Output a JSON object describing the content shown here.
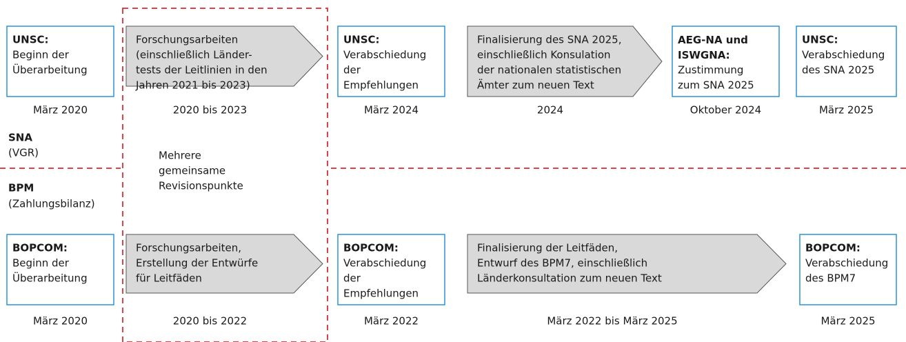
{
  "sna": {
    "label": "SNA",
    "sublabel": "(VGR)",
    "steps": [
      {
        "heading": "UNSC:",
        "lines": [
          "Beginn der",
          "Überarbeitung"
        ],
        "date": "März 2020"
      },
      {
        "lines": [
          "Forschungsarbeiten",
          "(einschließlich Länder-",
          "tests der Leitlinien in den",
          "Jahren 2021 bis 2023)"
        ],
        "date": "2020 bis 2023"
      },
      {
        "heading": "UNSC:",
        "lines": [
          "Verabschiedung",
          "der",
          "Empfehlungen"
        ],
        "date": "März 2024"
      },
      {
        "lines": [
          "Finalisierung des SNA 2025,",
          "einschließlich Konsulation",
          "der nationalen statistischen",
          "Ämter zum neuen Text"
        ],
        "date": "2024"
      },
      {
        "heading": "AEG-NA und ISWGNA:",
        "lines": [
          "Zustimmung",
          "zum SNA 2025"
        ],
        "date": "Oktober 2024"
      },
      {
        "heading": "UNSC:",
        "lines": [
          "Verabschiedung",
          "des SNA 2025"
        ],
        "date": "März 2025"
      }
    ]
  },
  "bpm": {
    "label": "BPM",
    "sublabel": "(Zahlungsbilanz)",
    "steps": [
      {
        "heading": "BOPCOM:",
        "lines": [
          "Beginn der",
          "Überarbeitung"
        ],
        "date": "März 2020"
      },
      {
        "lines": [
          "Forschungsarbeiten,",
          "Erstellung der Entwürfe",
          "für Leitfäden"
        ],
        "date": "2020 bis 2022"
      },
      {
        "heading": "BOPCOM:",
        "lines": [
          "Verabschiedung",
          "der",
          "Empfehlungen"
        ],
        "date": "März 2022"
      },
      {
        "lines": [
          "Finalisierung der Leitfäden,",
          "Entwurf des BPM7, einschließlich",
          "Länderkonsultation zum neuen Text"
        ],
        "date": "März 2022 bis März 2025"
      },
      {
        "heading": "BOPCOM:",
        "lines": [
          "Verabschiedung",
          "des BPM7"
        ],
        "date": "März 2025"
      }
    ]
  },
  "common": {
    "lines": [
      "Mehrere",
      "gemeinsame",
      "Revisionspunkte"
    ]
  }
}
